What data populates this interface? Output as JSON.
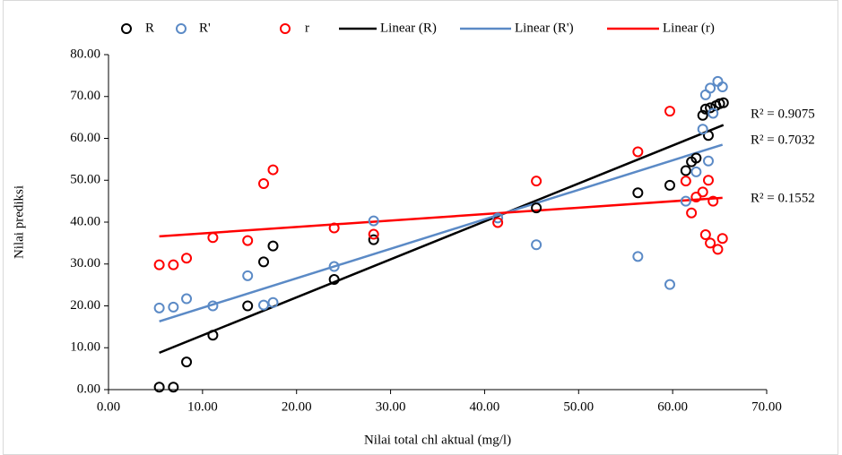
{
  "chart_data": {
    "type": "scatter",
    "x_label": "Nilai total chl aktual (mg/l)",
    "y_label": "Nilai prediksi",
    "xlim": [
      0,
      70
    ],
    "ylim": [
      0,
      80
    ],
    "xticks": [
      {
        "value": 0,
        "label": "0.00"
      },
      {
        "value": 10,
        "label": "10.00"
      },
      {
        "value": 20,
        "label": "20.00"
      },
      {
        "value": 30,
        "label": "30.00"
      },
      {
        "value": 40,
        "label": "40.00"
      },
      {
        "value": 50,
        "label": "50.00"
      },
      {
        "value": 60,
        "label": "60.00"
      },
      {
        "value": 70,
        "label": "70.00"
      }
    ],
    "yticks": [
      {
        "value": 0,
        "label": "0.00"
      },
      {
        "value": 10,
        "label": "10.00"
      },
      {
        "value": 20,
        "label": "20.00"
      },
      {
        "value": 30,
        "label": "30.00"
      },
      {
        "value": 40,
        "label": "40.00"
      },
      {
        "value": 50,
        "label": "50.00"
      },
      {
        "value": 60,
        "label": "60.00"
      },
      {
        "value": 70,
        "label": "70.00"
      },
      {
        "value": 80,
        "label": "80.00"
      }
    ],
    "grid": false,
    "legend": "top",
    "series": [
      {
        "name": "R",
        "color": "#000000",
        "x": [
          5.4,
          6.9,
          8.3,
          11.1,
          14.8,
          16.5,
          17.5,
          24.0,
          28.2,
          45.5,
          56.3,
          59.7,
          61.4,
          62.0,
          62.5,
          63.2,
          63.5,
          63.8,
          64.0,
          64.6,
          65.0,
          65.4
        ],
        "values": [
          0.6,
          0.6,
          6.6,
          13.0,
          20.0,
          30.5,
          34.3,
          26.3,
          35.8,
          43.4,
          47.0,
          48.8,
          52.3,
          54.4,
          55.3,
          65.5,
          67.0,
          60.7,
          67.3,
          67.8,
          68.3,
          68.5
        ]
      },
      {
        "name": "R'",
        "color": "#5b8ac6",
        "x": [
          5.4,
          6.9,
          8.3,
          11.1,
          14.8,
          16.5,
          17.5,
          24.0,
          28.2,
          41.4,
          45.5,
          56.3,
          59.7,
          61.4,
          62.5,
          63.2,
          63.5,
          63.8,
          64.0,
          64.3,
          64.8,
          65.3
        ],
        "values": [
          19.5,
          19.7,
          21.7,
          20.0,
          27.2,
          20.2,
          20.8,
          29.4,
          40.3,
          41.0,
          34.6,
          31.8,
          25.1,
          45.0,
          52.0,
          62.2,
          70.4,
          54.6,
          72.0,
          66.0,
          73.6,
          72.3
        ]
      },
      {
        "name": "r",
        "color": "#ff0000",
        "x": [
          5.4,
          6.9,
          8.3,
          11.1,
          14.8,
          16.5,
          17.5,
          24.0,
          28.2,
          41.4,
          45.5,
          56.3,
          59.7,
          61.4,
          62.0,
          62.5,
          63.2,
          63.5,
          63.8,
          64.0,
          64.3,
          64.8,
          65.3
        ],
        "values": [
          29.8,
          29.8,
          31.4,
          36.3,
          35.6,
          49.2,
          52.5,
          38.6,
          37.1,
          39.9,
          49.8,
          56.8,
          66.5,
          49.8,
          42.2,
          46.0,
          47.2,
          37.0,
          50.0,
          35.0,
          45.0,
          33.5,
          36.1
        ]
      }
    ],
    "trendlines": [
      {
        "name": "Linear (R)",
        "color": "#000000",
        "x": [
          5.4,
          65.4
        ],
        "values": [
          8.8,
          63.2
        ],
        "label": "R² = 0.9075"
      },
      {
        "name": "Linear (R')",
        "color": "#5b8ac6",
        "x": [
          5.4,
          65.3
        ],
        "values": [
          16.3,
          58.5
        ],
        "label": "R² = 0.7032"
      },
      {
        "name": "Linear (r)",
        "color": "#ff0000",
        "x": [
          5.4,
          65.3
        ],
        "values": [
          36.6,
          45.8
        ],
        "label": "R² = 0.1552"
      }
    ]
  }
}
